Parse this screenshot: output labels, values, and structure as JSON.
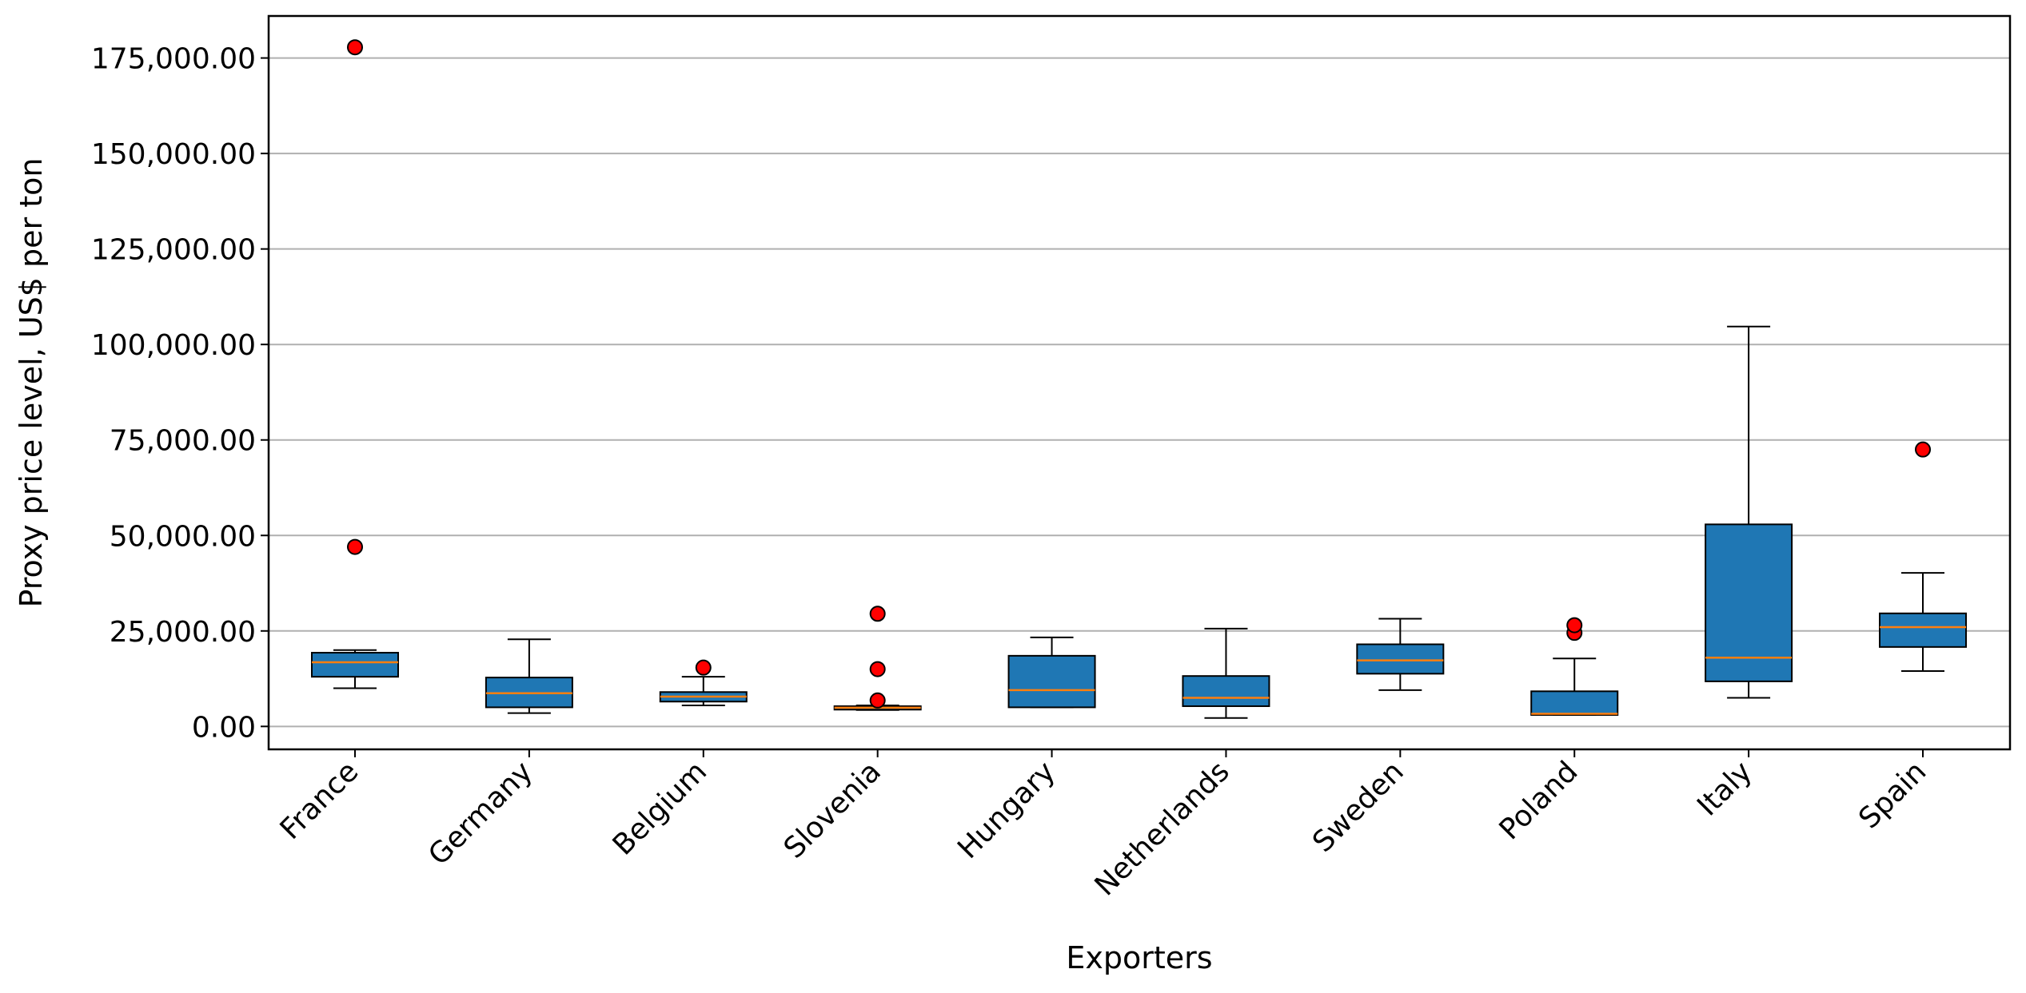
{
  "chart_data": {
    "type": "box",
    "title": "",
    "xlabel": "Exporters",
    "ylabel": "Proxy price level, US$ per ton",
    "ylim": [
      -6000,
      186000
    ],
    "yticks": [
      0,
      25000,
      50000,
      75000,
      100000,
      125000,
      150000,
      175000
    ],
    "ytick_labels": [
      "0.00",
      "25,000.00",
      "50,000.00",
      "75,000.00",
      "100,000.00",
      "125,000.00",
      "150,000.00",
      "175,000.00"
    ],
    "grid": "horizontal",
    "colors": {
      "box_fill": "#1f77b4",
      "median": "#ff7f0e",
      "outlier": "#ff0000",
      "grid": "#b0b0b0"
    },
    "categories": [
      "France",
      "Germany",
      "Belgium",
      "Slovenia",
      "Hungary",
      "Netherlands",
      "Sweden",
      "Poland",
      "Italy",
      "Spain"
    ],
    "boxes": [
      {
        "category": "France",
        "whislo": 10000,
        "q1": 13000,
        "med": 16800,
        "q3": 19300,
        "whishi": 20000,
        "fliers": [
          47000,
          177800
        ]
      },
      {
        "category": "Germany",
        "whislo": 3500,
        "q1": 5000,
        "med": 8700,
        "q3": 12800,
        "whishi": 22800,
        "fliers": []
      },
      {
        "category": "Belgium",
        "whislo": 5500,
        "q1": 6500,
        "med": 7800,
        "q3": 9000,
        "whishi": 13000,
        "fliers": [
          15400
        ]
      },
      {
        "category": "Slovenia",
        "whislo": 4300,
        "q1": 4400,
        "med": 4900,
        "q3": 5300,
        "whishi": 5500,
        "fliers": [
          6800,
          15000,
          29500
        ]
      },
      {
        "category": "Hungary",
        "whislo": 5000,
        "q1": 5000,
        "med": 9500,
        "q3": 18500,
        "whishi": 23300,
        "fliers": []
      },
      {
        "category": "Netherlands",
        "whislo": 2200,
        "q1": 5300,
        "med": 7500,
        "q3": 13200,
        "whishi": 25600,
        "fliers": []
      },
      {
        "category": "Sweden",
        "whislo": 9500,
        "q1": 13800,
        "med": 17300,
        "q3": 21500,
        "whishi": 28200,
        "fliers": []
      },
      {
        "category": "Poland",
        "whislo": 3000,
        "q1": 3000,
        "med": 3300,
        "q3": 9200,
        "whishi": 17800,
        "fliers": [
          24500,
          26500
        ]
      },
      {
        "category": "Italy",
        "whislo": 7500,
        "q1": 11800,
        "med": 18000,
        "q3": 52900,
        "whishi": 104700,
        "fliers": []
      },
      {
        "category": "Spain",
        "whislo": 14500,
        "q1": 20800,
        "med": 26000,
        "q3": 29600,
        "whishi": 40200,
        "fliers": [
          72500
        ]
      }
    ]
  }
}
